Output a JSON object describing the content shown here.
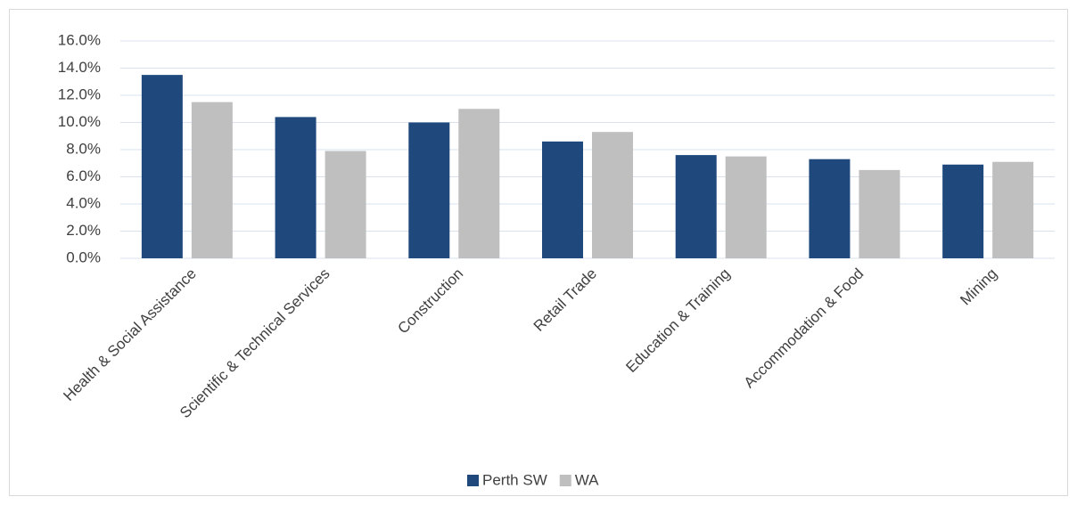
{
  "chart_data": {
    "type": "bar",
    "categories": [
      "Health & Social Assistance",
      "Scientific & Technical Services",
      "Construction",
      "Retail Trade",
      "Education & Training",
      "Accommodation & Food",
      "Mining"
    ],
    "series": [
      {
        "name": "Perth SW",
        "color": "#1f497d",
        "values": [
          13.5,
          10.4,
          10.0,
          8.6,
          7.6,
          7.3,
          6.9
        ]
      },
      {
        "name": "WA",
        "color": "#bfbfbf",
        "values": [
          11.5,
          7.9,
          11.0,
          9.3,
          7.5,
          6.5,
          7.1
        ]
      }
    ],
    "ylim": [
      0,
      16
    ],
    "yticks": [
      {
        "value": 0,
        "label": "0.0%"
      },
      {
        "value": 2,
        "label": "2.0%"
      },
      {
        "value": 4,
        "label": "4.0%"
      },
      {
        "value": 6,
        "label": "6.0%"
      },
      {
        "value": 8,
        "label": "8.0%"
      },
      {
        "value": 10,
        "label": "10.0%"
      },
      {
        "value": 12,
        "label": "12.0%"
      },
      {
        "value": 14,
        "label": "14.0%"
      },
      {
        "value": 16,
        "label": "16.0%"
      }
    ],
    "grid": true,
    "legend": "bottom"
  }
}
